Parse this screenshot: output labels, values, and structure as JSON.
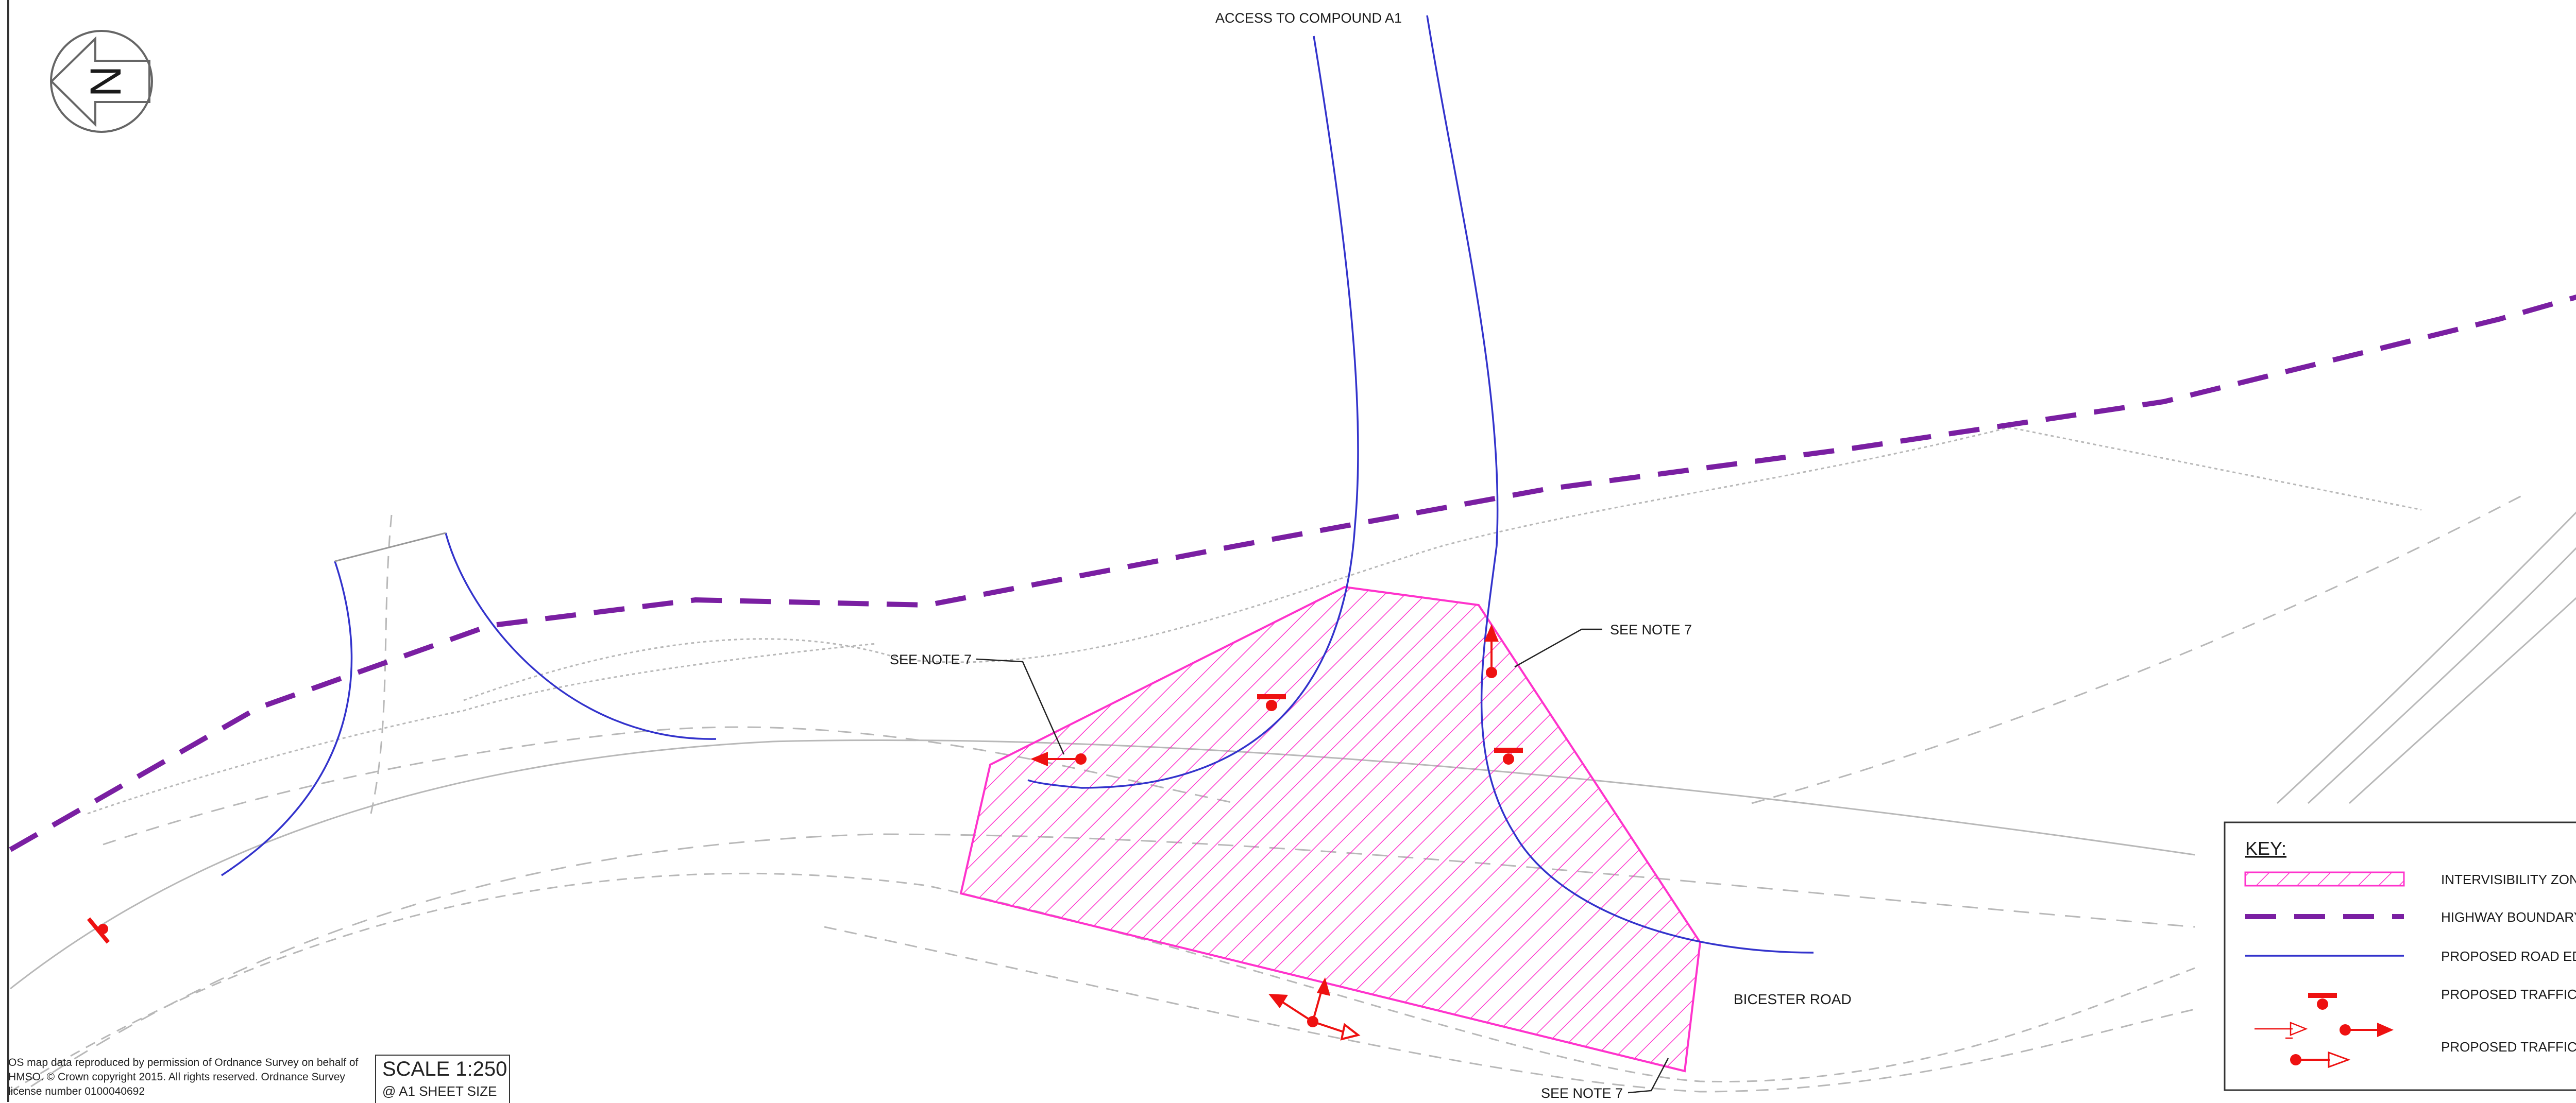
{
  "north_arrow": {
    "letter": "N"
  },
  "labels": {
    "access": "ACCESS TO COMPOUND A1",
    "note_left": "SEE NOTE 7",
    "note_right": "SEE NOTE 7",
    "note_bottom": "SEE NOTE 7",
    "road": "BICESTER ROAD"
  },
  "key": {
    "title": "KEY:",
    "items": [
      {
        "label": "INTERVISIBILITY ZONE",
        "icon": "hatched-zone-swatch"
      },
      {
        "label": "HIGHWAY BOUNDARY",
        "icon": "dashed-boundary-line"
      },
      {
        "label": "PROPOSED ROAD EDGE",
        "icon": "road-edge-line"
      },
      {
        "label": "PROPOSED TRAFFIC SIGN",
        "icon": "traffic-sign-symbol"
      },
      {
        "label": "PROPOSED TRAFFIC SIGNALS",
        "icon": "traffic-signal-symbol"
      }
    ]
  },
  "credit": {
    "line1": "OS map data reproduced by permission of Ordnance Survey on behalf of",
    "line2": "HMSO. © Crown copyright 2015. All rights reserved. Ordnance Survey",
    "line3": "license number 0100040692"
  },
  "scale": {
    "title": "SCALE 1:250",
    "sheet": "@ A1 SHEET SIZE"
  },
  "colors": {
    "zone": "#ff33cc",
    "boundary": "#7a1fa2",
    "road_edge": "#3333cc",
    "signal": "#ee1111",
    "base_map": "#b8b8b8"
  }
}
